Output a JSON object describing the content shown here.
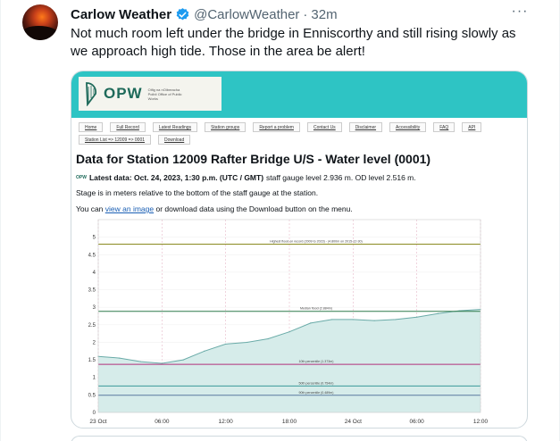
{
  "tweet": {
    "name": "Carlow Weather",
    "handle": "@CarlowWeather",
    "separator": "·",
    "time": "32m",
    "more": "···",
    "text": "Not much room left under the bridge in Enniscorthy and still rising slowly as we approach high tide. Those in the area be alert!",
    "accent": "#1d9bf0"
  },
  "opw": {
    "logo": "OPW",
    "subtitle": "Oifig na nOibreacha Poiblí Office of Public Works",
    "bar_color": "#2ec4c4",
    "menu": [
      "Home",
      "Full Record",
      "Latest Readings",
      "Station groups",
      "Report a problem",
      "Contact Us",
      "Disclaimer",
      "Accessibility",
      "FAQ",
      "API"
    ],
    "menu2": [
      "Station List => 12009 => 0001",
      "Download"
    ],
    "title": "Data for Station 12009 Rafter Bridge U/S - Water level (0001)",
    "latest_prefix": "Latest data: Oct. 24, 2023, 1:30 p.m. (UTC / GMT)",
    "latest_suffix": " staff gauge level 2.936 m. OD level 2.516 m.",
    "stage_note": "Stage is in meters relative to the bottom of the staff gauge at the station.",
    "youcan_prefix": "You can ",
    "youcan_link": "view an image",
    "youcan_suffix": " or download data using the Download button on the menu."
  },
  "chart_data": {
    "type": "area",
    "title": "",
    "xlabel": "",
    "ylabel": "",
    "ylim": [
      0,
      5.5
    ],
    "yticks": [
      "0",
      "0.5",
      "1",
      "1.5",
      "2",
      "2.5",
      "3",
      "3.5",
      "4",
      "4.5",
      "5"
    ],
    "xticks": [
      "23 Oct",
      "06:00",
      "12:00",
      "18:00",
      "24 Oct",
      "06:00",
      "12:00"
    ],
    "grid": true,
    "series": [
      {
        "values_hours": [
          0,
          2,
          4,
          6,
          8,
          10,
          12,
          14,
          16,
          18,
          20,
          22,
          24,
          26,
          28,
          30,
          32,
          34,
          36,
          37
        ],
        "values": [
          1.6,
          1.55,
          1.45,
          1.4,
          1.5,
          1.75,
          1.95,
          2.0,
          2.1,
          2.3,
          2.55,
          2.65,
          2.65,
          2.62,
          2.65,
          2.72,
          2.82,
          2.9,
          2.94,
          2.94
        ]
      }
    ],
    "reference_lines": [
      {
        "label": "Highest flood on record (2009 to 2023) - (4.800m on 2015-12-30)",
        "value": 4.8,
        "color": "#8a8a20"
      },
      {
        "label": "Median flood (2.884m)",
        "value": 2.884,
        "color": "#2f7a4a"
      },
      {
        "label": "10th percentile (1.373m)",
        "value": 1.373,
        "color": "#b0307a"
      },
      {
        "label": "50th percentile (0.754m)",
        "value": 0.754,
        "color": "#3a9a9a"
      },
      {
        "label": "90th percentile (0.489m)",
        "value": 0.489,
        "color": "#5a7aa0"
      }
    ],
    "fill_color": "#d6ecea",
    "line_color": "#6aaba8"
  }
}
